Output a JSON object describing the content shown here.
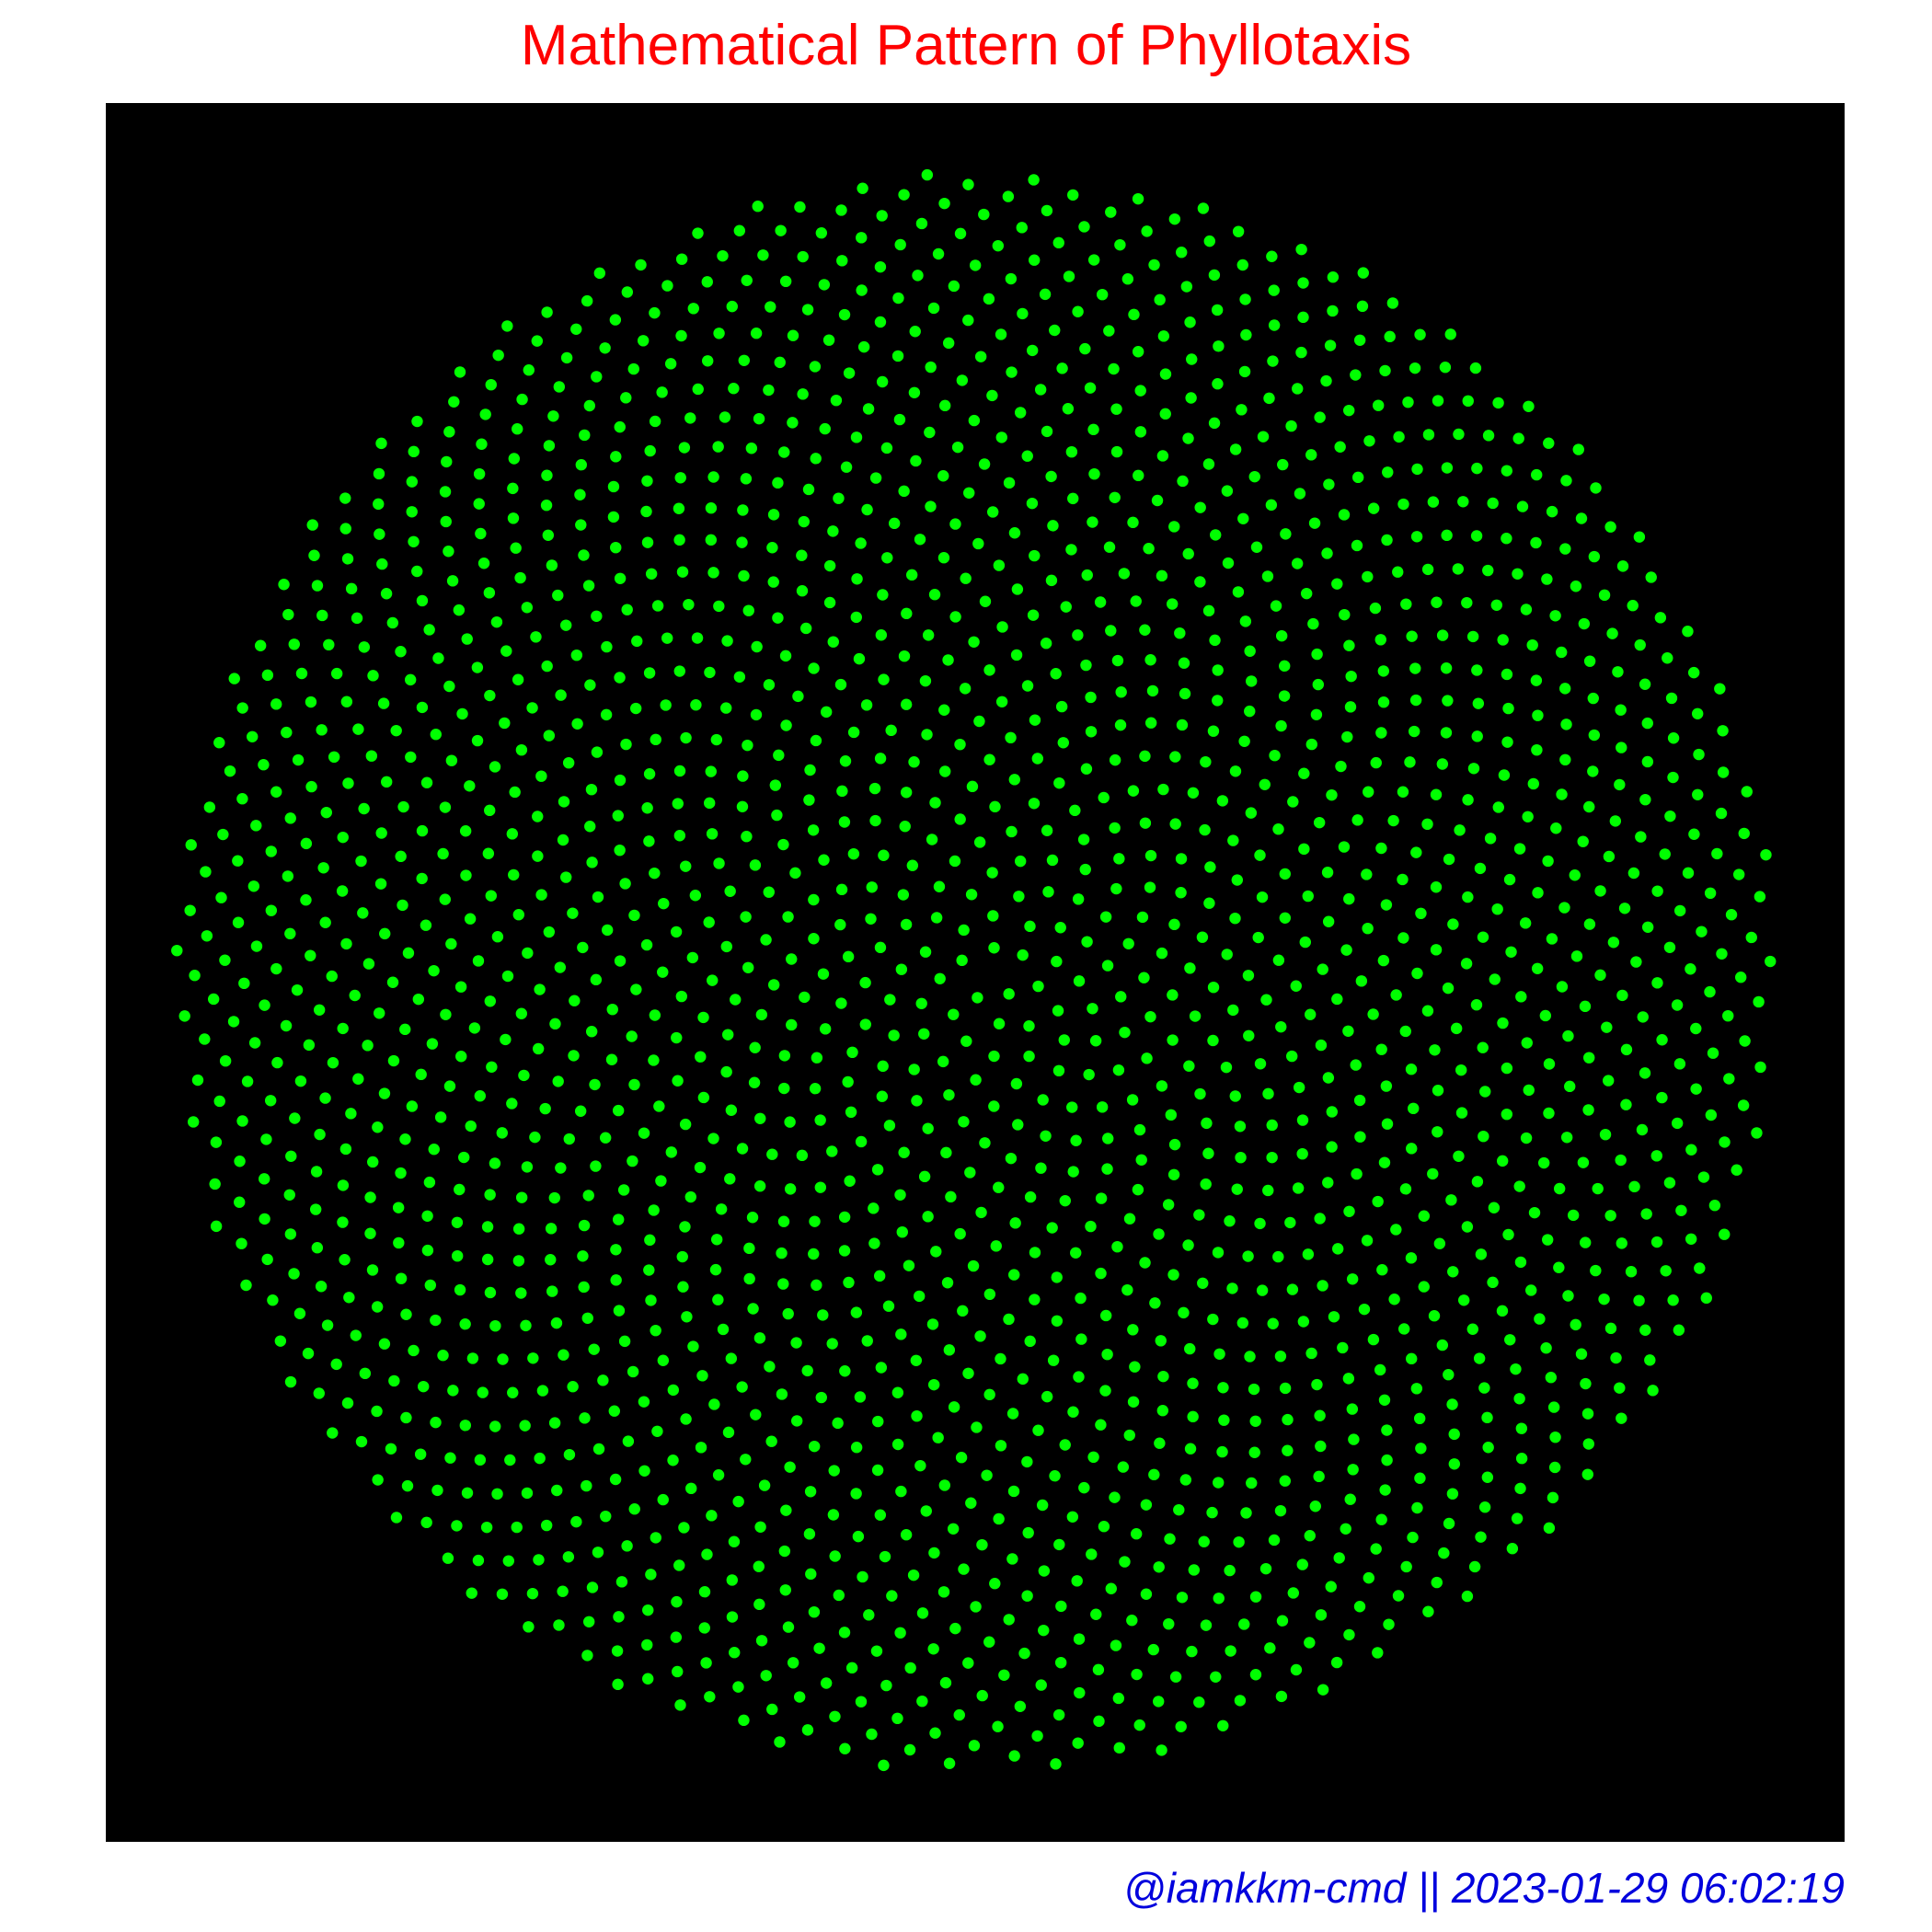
{
  "chart_data": {
    "type": "scatter",
    "title": "Mathematical Pattern of Phyllotaxis",
    "xlabel": "",
    "ylabel": "",
    "caption": "@iamkkm-cmd || 2023-01-29 06:02:19",
    "grid": false,
    "legend": "none",
    "axes_visible": false,
    "pattern": {
      "point_count": 2000,
      "divergence_angle_deg": 137.508,
      "radius_rule": "sqrt(n)",
      "rotation_direction": "counterclockwise"
    },
    "colors": {
      "title": "#ff0000",
      "caption": "#0000dd",
      "panel_background": "#000000",
      "points": "#00ff00"
    }
  }
}
